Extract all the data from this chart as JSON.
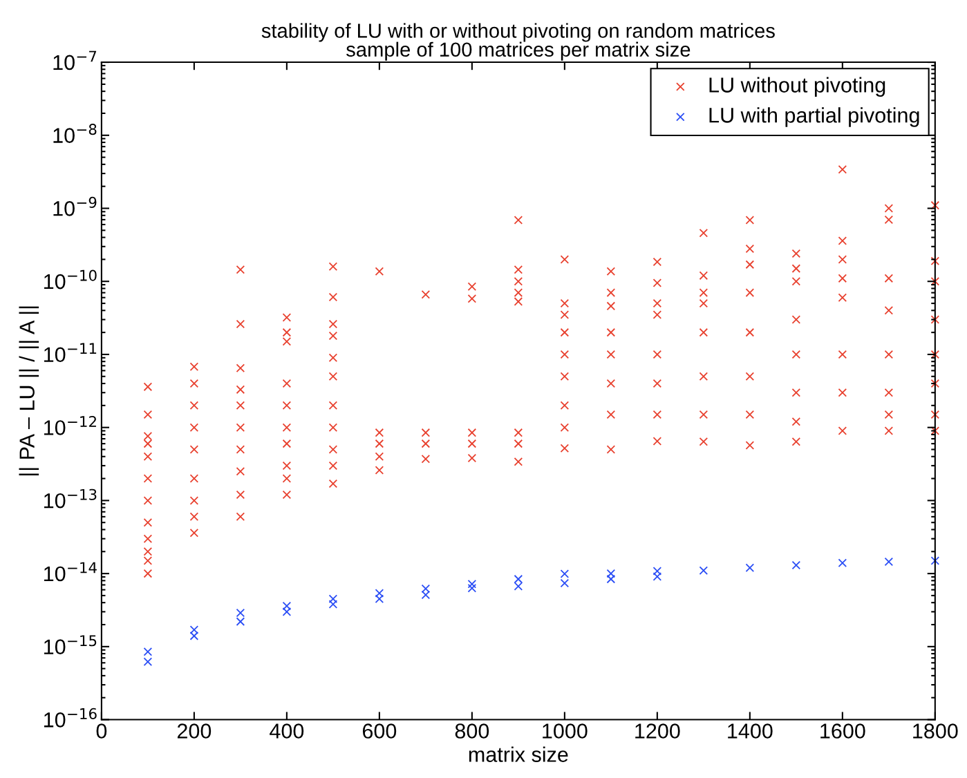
{
  "chart_data": {
    "type": "scatter",
    "title": "stability of LU with or without pivoting on random matrices\nsample of 100 matrices per matrix size",
    "xlabel": "matrix size",
    "ylabel": "|| PA – LU || / || A ||",
    "log": "y",
    "marker": "cross",
    "grid": false,
    "legend": "top right",
    "xlim": [
      0,
      1800
    ],
    "xticks": [
      0,
      200,
      400,
      600,
      800,
      1000,
      1200,
      1400,
      1600,
      1800
    ],
    "ylim": [
      1e-16,
      1e-07
    ],
    "yticks": [
      {
        "value": 1e-16,
        "label": "10$^{−16}$"
      },
      {
        "value": 1e-15,
        "label": "10$^{−15}$"
      },
      {
        "value": 1e-14,
        "label": "10$^{−14}$"
      },
      {
        "value": 1e-13,
        "label": "10$^{−13}$"
      },
      {
        "value": 1e-12,
        "label": "10$^{−12}$"
      },
      {
        "value": 1e-11,
        "label": "10$^{−11}$"
      },
      {
        "value": 1e-10,
        "label": "10$^{−10}$"
      },
      {
        "value": 1e-09,
        "label": "10$^{−9}$"
      },
      {
        "value": 1e-08,
        "label": "10$^{−8}$"
      },
      {
        "value": 1e-07,
        "label": "10$^{−7}$"
      }
    ],
    "series": [
      {
        "name": "LU without pivoting",
        "color": "#e8412f",
        "x": [
          100,
          100,
          100,
          100,
          100,
          100,
          100,
          100,
          100,
          100,
          100,
          100,
          200,
          200,
          200,
          200,
          200,
          200,
          200,
          200,
          200,
          300,
          300,
          300,
          300,
          300,
          300,
          300,
          300,
          300,
          300,
          400,
          400,
          400,
          400,
          400,
          400,
          400,
          400,
          400,
          400,
          500,
          500,
          500,
          500,
          500,
          500,
          500,
          500,
          500,
          500,
          500,
          600,
          600,
          600,
          600,
          600,
          700,
          700,
          700,
          700,
          800,
          800,
          800,
          800,
          800,
          900,
          900,
          900,
          900,
          900,
          900,
          900,
          900,
          1000,
          1000,
          1000,
          1000,
          1000,
          1000,
          1000,
          1000,
          1000,
          1100,
          1100,
          1100,
          1100,
          1100,
          1100,
          1100,
          1100,
          1200,
          1200,
          1200,
          1200,
          1200,
          1200,
          1200,
          1200,
          1300,
          1300,
          1300,
          1300,
          1300,
          1300,
          1300,
          1300,
          1400,
          1400,
          1400,
          1400,
          1400,
          1400,
          1400,
          1400,
          1500,
          1500,
          1500,
          1500,
          1500,
          1500,
          1500,
          1500,
          1600,
          1600,
          1600,
          1600,
          1600,
          1600,
          1600,
          1600,
          1700,
          1700,
          1700,
          1700,
          1700,
          1700,
          1700,
          1700,
          1800,
          1800,
          1800,
          1800,
          1800,
          1800,
          1800,
          1800
        ],
        "values": [
          3.6e-12,
          1.5e-12,
          7.6e-13,
          6e-13,
          4e-13,
          2e-13,
          1e-13,
          5e-14,
          3e-14,
          2e-14,
          1.5e-14,
          1e-14,
          6.8e-12,
          4e-12,
          2e-12,
          1e-12,
          5e-13,
          2e-13,
          1e-13,
          6e-14,
          3.6e-14,
          1.45e-10,
          2.6e-11,
          6.5e-12,
          3.3e-12,
          2e-12,
          1e-12,
          5e-13,
          2.5e-13,
          1.2e-13,
          6e-14,
          3.2e-11,
          2e-11,
          1.5e-11,
          4e-12,
          2e-12,
          1e-12,
          6e-13,
          3e-13,
          2e-13,
          1.2e-13,
          1.6e-10,
          6.1e-11,
          2.6e-11,
          1.8e-11,
          9e-12,
          5e-12,
          2e-12,
          1e-12,
          5e-13,
          3e-13,
          1.7e-13,
          1.37e-10,
          8.5e-13,
          6e-13,
          4e-13,
          2.6e-13,
          6.6e-11,
          8.5e-13,
          6e-13,
          3.7e-13,
          8.5e-11,
          5.8e-11,
          8.5e-13,
          6e-13,
          3.8e-13,
          6.9e-10,
          1.45e-10,
          1e-10,
          7e-11,
          5.3e-11,
          8.5e-13,
          6e-13,
          3.4e-13,
          2e-10,
          5e-11,
          3.5e-11,
          2e-11,
          1e-11,
          5e-12,
          2e-12,
          1e-12,
          5.2e-13,
          1.37e-10,
          7e-11,
          4.6e-11,
          2e-11,
          1e-11,
          4e-12,
          1.5e-12,
          5e-13,
          1.85e-10,
          9.5e-11,
          5e-11,
          3.5e-11,
          1e-11,
          4e-12,
          1.5e-12,
          6.5e-13,
          4.6e-10,
          1.2e-10,
          7e-11,
          5e-11,
          2e-11,
          5e-12,
          1.5e-12,
          6.4e-13,
          6.9e-10,
          2.8e-10,
          1.7e-10,
          7e-11,
          2e-11,
          5e-12,
          1.5e-12,
          5.7e-13,
          2.4e-10,
          1.5e-10,
          1e-10,
          3e-11,
          1e-11,
          3e-12,
          1.2e-12,
          6.4e-13,
          3.4e-09,
          3.6e-10,
          2e-10,
          1.1e-10,
          6e-11,
          1e-11,
          3e-12,
          9e-13,
          1e-09,
          7e-10,
          1.1e-10,
          4e-11,
          1e-11,
          3e-12,
          1.5e-12,
          9e-13,
          1.1e-09,
          1.9e-10,
          1e-10,
          3e-11,
          1e-11,
          4e-12,
          1.5e-12,
          9e-13
        ]
      },
      {
        "name": "LU with partial pivoting",
        "color": "#2b4ef5",
        "x": [
          100,
          100,
          200,
          200,
          300,
          300,
          400,
          400,
          500,
          500,
          600,
          600,
          700,
          700,
          800,
          800,
          900,
          900,
          1000,
          1000,
          1100,
          1100,
          1200,
          1200,
          1300,
          1400,
          1500,
          1600,
          1700,
          1800
        ],
        "values": [
          8.5e-16,
          6.2e-16,
          1.7e-15,
          1.4e-15,
          2.9e-15,
          2.2e-15,
          3.6e-15,
          3e-15,
          4.5e-15,
          3.8e-15,
          5.4e-15,
          4.5e-15,
          6.2e-15,
          5.1e-15,
          7.2e-15,
          6.3e-15,
          8.4e-15,
          6.7e-15,
          9.9e-15,
          7.4e-15,
          1e-14,
          8.4e-15,
          1.08e-14,
          9.1e-15,
          1.1e-14,
          1.2e-14,
          1.3e-14,
          1.4e-14,
          1.45e-14,
          1.5e-14
        ]
      }
    ]
  }
}
